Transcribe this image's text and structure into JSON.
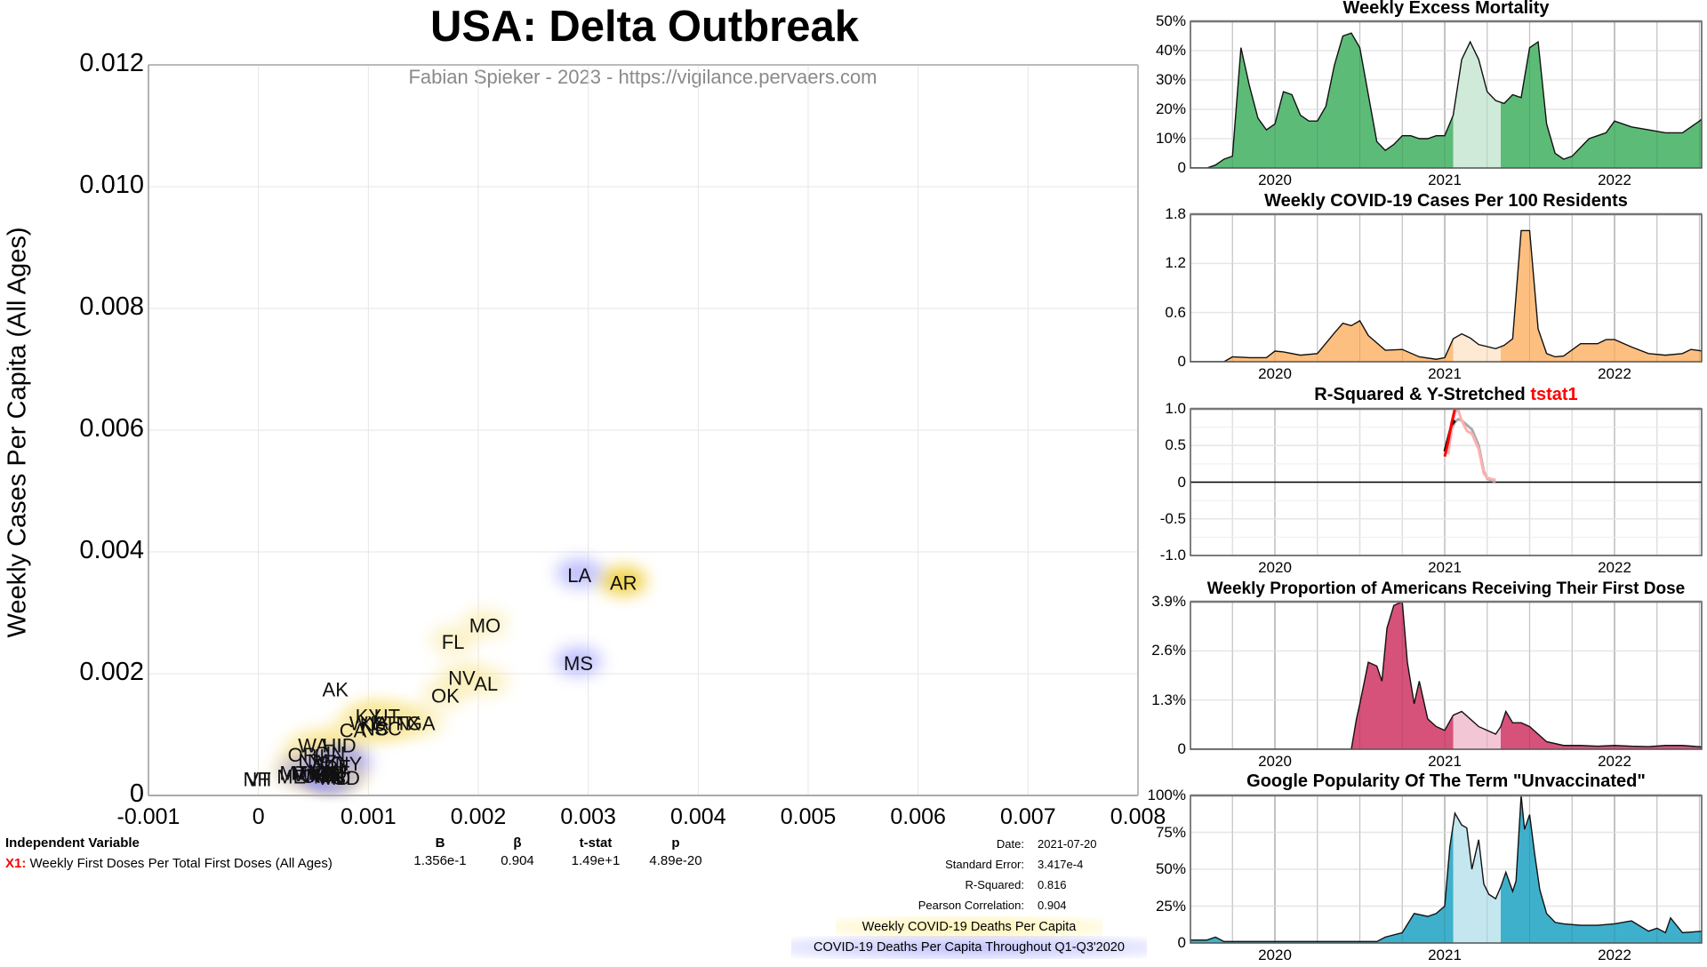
{
  "title": "USA: Delta Outbreak",
  "subtitle": "Fabian Spieker - 2023 - https://vigilance.pervaers.com",
  "chart_data": [
    {
      "type": "scatter",
      "title": "USA: Delta Outbreak",
      "xlabel": "Weekly First Doses Per Total First Doses (All Ages)",
      "ylabel": "Weekly Cases Per Capita (All Ages)",
      "xlim": [
        -0.001,
        0.008
      ],
      "ylim": [
        0,
        0.012
      ],
      "grid": true,
      "x_ticks": [
        "-0.001",
        "0",
        "0.001",
        "0.002",
        "0.003",
        "0.004",
        "0.005",
        "0.006",
        "0.007",
        "0.008"
      ],
      "x_tick_values": [
        -0.001,
        0,
        0.001,
        0.002,
        0.003,
        0.004,
        0.005,
        0.006,
        0.007,
        0.008
      ],
      "y_ticks": [
        "0",
        "0.002",
        "0.004",
        "0.006",
        "0.008",
        "0.010",
        "0.012"
      ],
      "y_tick_values": [
        0,
        0.002,
        0.004,
        0.006,
        0.008,
        0.01,
        0.012
      ],
      "points": [
        {
          "label": "AR",
          "x": 0.00332,
          "y": 0.00342,
          "glow": "yellow-strong"
        },
        {
          "label": "LA",
          "x": 0.00292,
          "y": 0.00355,
          "glow": "blue"
        },
        {
          "label": "MS",
          "x": 0.00291,
          "y": 0.0021,
          "glow": "blue"
        },
        {
          "label": "MO",
          "x": 0.00206,
          "y": 0.00272,
          "glow": "yellow"
        },
        {
          "label": "FL",
          "x": 0.00177,
          "y": 0.00245,
          "glow": "yellow"
        },
        {
          "label": "NV",
          "x": 0.00185,
          "y": 0.00186,
          "glow": "yellow"
        },
        {
          "label": "AL",
          "x": 0.00207,
          "y": 0.00177,
          "glow": "yellow"
        },
        {
          "label": "OK",
          "x": 0.0017,
          "y": 0.00157,
          "glow": "yellow"
        },
        {
          "label": "AK",
          "x": 0.0007,
          "y": 0.00167,
          "glow": "none"
        },
        {
          "label": "KY",
          "x": 0.001,
          "y": 0.00123,
          "glow": "yellow"
        },
        {
          "label": "UT",
          "x": 0.00117,
          "y": 0.00123,
          "glow": "yellow"
        },
        {
          "label": "WY",
          "x": 0.00097,
          "y": 0.00112,
          "glow": "yellow"
        },
        {
          "label": "KS",
          "x": 0.00104,
          "y": 0.0011,
          "glow": "yellow"
        },
        {
          "label": "IA",
          "x": 0.0011,
          "y": 0.00112,
          "glow": "yellow"
        },
        {
          "label": "TN",
          "x": 0.00126,
          "y": 0.00112,
          "glow": "yellow"
        },
        {
          "label": "TX",
          "x": 0.00136,
          "y": 0.00112,
          "glow": "yellow"
        },
        {
          "label": "GA",
          "x": 0.00148,
          "y": 0.00112,
          "glow": "yellow"
        },
        {
          "label": "CA",
          "x": 0.00086,
          "y": 0.001,
          "glow": "yellow"
        },
        {
          "label": "SC",
          "x": 0.00118,
          "y": 0.00103,
          "glow": "yellow"
        },
        {
          "label": "NC",
          "x": 0.00106,
          "y": 0.00103,
          "glow": "yellow"
        },
        {
          "label": "WA",
          "x": 0.0005,
          "y": 0.00075,
          "glow": "yellow"
        },
        {
          "label": "HI",
          "x": 0.00067,
          "y": 0.00075,
          "glow": "yellow"
        },
        {
          "label": "ID",
          "x": 0.0008,
          "y": 0.00075,
          "glow": "yellow"
        },
        {
          "label": "OR",
          "x": 0.0004,
          "y": 0.0006,
          "glow": "yellow"
        },
        {
          "label": "IN",
          "x": 0.0007,
          "y": 0.00062,
          "glow": "yellow"
        },
        {
          "label": "IL",
          "x": 0.00058,
          "y": 0.00058,
          "glow": "yellow"
        },
        {
          "label": "NM",
          "x": 0.0005,
          "y": 0.0005,
          "glow": "yellow"
        },
        {
          "label": "AZ",
          "x": 0.0006,
          "y": 0.00048,
          "glow": "yellow"
        },
        {
          "label": "CO",
          "x": 0.00066,
          "y": 0.00046,
          "glow": "yellow"
        },
        {
          "label": "NY",
          "x": 0.00082,
          "y": 0.00045,
          "glow": "blue"
        },
        {
          "label": "DE",
          "x": 0.00072,
          "y": 0.0004,
          "glow": "blue"
        },
        {
          "label": "MT",
          "x": 0.00032,
          "y": 0.0003,
          "glow": "yellow"
        },
        {
          "label": "WV",
          "x": 0.00046,
          "y": 0.00028,
          "glow": "yellow"
        },
        {
          "label": "OH",
          "x": 0.00052,
          "y": 0.00025,
          "glow": "yellow"
        },
        {
          "label": "ND",
          "x": 0.00056,
          "y": 0.00026,
          "glow": "yellow"
        },
        {
          "label": "NE",
          "x": 0.0006,
          "y": 0.00028,
          "glow": "yellow"
        },
        {
          "label": "MN",
          "x": 0.00064,
          "y": 0.00024,
          "glow": "yellow"
        },
        {
          "label": "WI",
          "x": 0.00068,
          "y": 0.00026,
          "glow": "yellow"
        },
        {
          "label": "MI",
          "x": 0.0004,
          "y": 0.0003,
          "glow": "blue"
        },
        {
          "label": "PA",
          "x": 0.00062,
          "y": 0.0003,
          "glow": "blue"
        },
        {
          "label": "NJ",
          "x": 0.0007,
          "y": 0.00032,
          "glow": "blue"
        },
        {
          "label": "MA",
          "x": 0.0006,
          "y": 0.00026,
          "glow": "blue"
        },
        {
          "label": "VA",
          "x": 0.00058,
          "y": 0.00032,
          "glow": "yellow"
        },
        {
          "label": "MD",
          "x": 0.0007,
          "y": 0.00022,
          "glow": "blue"
        },
        {
          "label": "CT",
          "x": 0.00064,
          "y": 0.0003,
          "glow": "blue"
        },
        {
          "label": "RI",
          "x": 0.00066,
          "y": 0.00024,
          "glow": "blue"
        },
        {
          "label": "SD",
          "x": 0.0008,
          "y": 0.00022,
          "glow": "yellow"
        },
        {
          "label": "NH",
          "x": -1e-05,
          "y": 0.0002,
          "glow": "none"
        },
        {
          "label": "VT",
          "x": 0.0,
          "y": 0.0002,
          "glow": "none"
        },
        {
          "label": "ME",
          "x": 0.0003,
          "y": 0.00024,
          "glow": "none"
        }
      ]
    },
    {
      "type": "area",
      "title": "Weekly Excess Mortality",
      "y_ticks": [
        "0",
        "10%",
        "20%",
        "30%",
        "40%",
        "50%"
      ],
      "ylim": [
        0,
        50
      ],
      "x_ticks": [
        "2020",
        "2021",
        "2022"
      ],
      "highlight_range": [
        2021.05,
        2021.33
      ],
      "color": "#5dbb78",
      "highlight_color": "#cfead8",
      "x": [
        2019.5,
        2019.6,
        2019.65,
        2019.7,
        2019.75,
        2019.8,
        2019.85,
        2019.9,
        2019.95,
        2020.0,
        2020.05,
        2020.1,
        2020.15,
        2020.2,
        2020.25,
        2020.3,
        2020.35,
        2020.4,
        2020.45,
        2020.5,
        2020.55,
        2020.6,
        2020.65,
        2020.7,
        2020.75,
        2020.8,
        2020.85,
        2020.9,
        2020.95,
        2021.0,
        2021.05,
        2021.1,
        2021.15,
        2021.2,
        2021.25,
        2021.3,
        2021.35,
        2021.4,
        2021.45,
        2021.5,
        2021.55,
        2021.6,
        2021.65,
        2021.7,
        2021.75,
        2021.8,
        2021.85,
        2021.9,
        2021.95,
        2022.0,
        2022.1,
        2022.2,
        2022.3,
        2022.4,
        2022.5,
        2022.52
      ],
      "values": [
        0,
        0,
        1,
        3,
        4,
        41,
        28,
        17,
        13,
        15,
        26,
        25,
        18,
        16,
        16,
        21,
        35,
        45,
        46,
        41,
        25,
        9,
        6,
        8,
        11,
        11,
        10,
        10,
        11,
        11,
        18,
        37,
        43,
        37,
        26,
        23,
        22,
        25,
        24,
        41,
        43,
        15,
        5,
        3,
        4,
        7,
        10,
        11,
        12,
        16,
        14,
        13,
        12,
        12,
        16,
        17
      ]
    },
    {
      "type": "area",
      "title": "Weekly COVID-19 Cases Per 100 Residents",
      "y_ticks": [
        "0",
        "0.6",
        "1.2",
        "1.8"
      ],
      "ylim": [
        0,
        1.8
      ],
      "x_ticks": [
        "2020",
        "2021",
        "2022"
      ],
      "highlight_range": [
        2021.05,
        2021.33
      ],
      "color": "#fdbf80",
      "highlight_color": "#fde9d4",
      "x": [
        2019.5,
        2019.7,
        2019.75,
        2019.85,
        2019.95,
        2020.0,
        2020.05,
        2020.15,
        2020.25,
        2020.35,
        2020.4,
        2020.45,
        2020.5,
        2020.55,
        2020.65,
        2020.75,
        2020.85,
        2020.95,
        2021.0,
        2021.05,
        2021.1,
        2021.15,
        2021.2,
        2021.3,
        2021.35,
        2021.4,
        2021.45,
        2021.5,
        2021.55,
        2021.6,
        2021.65,
        2021.7,
        2021.8,
        2021.9,
        2021.95,
        2022.0,
        2022.1,
        2022.2,
        2022.3,
        2022.4,
        2022.45,
        2022.52
      ],
      "values": [
        0,
        0,
        0.06,
        0.05,
        0.05,
        0.13,
        0.12,
        0.08,
        0.1,
        0.35,
        0.47,
        0.44,
        0.5,
        0.32,
        0.14,
        0.15,
        0.06,
        0.03,
        0.05,
        0.28,
        0.34,
        0.29,
        0.21,
        0.16,
        0.2,
        0.28,
        1.6,
        1.6,
        0.4,
        0.1,
        0.06,
        0.07,
        0.22,
        0.22,
        0.27,
        0.27,
        0.18,
        0.1,
        0.08,
        0.1,
        0.15,
        0.13
      ]
    },
    {
      "type": "line",
      "title": "R-Squared &  Y-Stretched tstat1",
      "title_highlight": "tstat1",
      "y_ticks": [
        "-1.0",
        "-0.5",
        "0",
        "0.5",
        "1.0"
      ],
      "ylim": [
        -1.0,
        1.0
      ],
      "x_ticks": [
        "2020",
        "2021",
        "2022"
      ],
      "series": [
        {
          "name": "R-Squared (history)",
          "color": "#aaaaaa",
          "x": [
            2021.02,
            2021.04,
            2021.06,
            2021.08,
            2021.1,
            2021.13,
            2021.16,
            2021.2,
            2021.23,
            2021.25,
            2021.28,
            2021.3
          ],
          "values": [
            0.45,
            0.72,
            0.82,
            0.86,
            0.84,
            0.78,
            0.72,
            0.5,
            0.15,
            0.05,
            0.02,
            0.01
          ]
        },
        {
          "name": "tstat1 (history)",
          "color": "#ffb0b0",
          "x": [
            2021.02,
            2021.04,
            2021.06,
            2021.08,
            2021.1,
            2021.13,
            2021.16,
            2021.2,
            2021.23,
            2021.25,
            2021.28,
            2021.3
          ],
          "values": [
            0.38,
            0.7,
            0.95,
            0.98,
            0.84,
            0.7,
            0.66,
            0.45,
            0.12,
            0.06,
            0.04,
            0.03
          ]
        },
        {
          "name": "R-Squared",
          "color": "#000000",
          "x": [
            2021.0,
            2021.02,
            2021.04,
            2021.06
          ],
          "values": [
            0.42,
            0.6,
            0.78,
            0.84
          ]
        },
        {
          "name": "tstat1",
          "color": "#ff0000",
          "x": [
            2021.0,
            2021.02,
            2021.04,
            2021.06
          ],
          "values": [
            0.35,
            0.55,
            0.8,
            1.0
          ]
        }
      ]
    },
    {
      "type": "area",
      "title": "Weekly Proportion of Americans Receiving Their First Dose",
      "y_ticks": [
        "0",
        "1.3%",
        "2.6%",
        "3.9%"
      ],
      "ylim": [
        0,
        3.9
      ],
      "x_ticks": [
        "2020",
        "2021",
        "2022"
      ],
      "highlight_range": [
        2021.05,
        2021.33
      ],
      "color": "#d6527a",
      "highlight_color": "#f2c6d4",
      "x": [
        2019.5,
        2020.45,
        2020.48,
        2020.5,
        2020.55,
        2020.6,
        2020.63,
        2020.66,
        2020.7,
        2020.75,
        2020.78,
        2020.82,
        2020.85,
        2020.9,
        2020.95,
        2021.0,
        2021.05,
        2021.1,
        2021.15,
        2021.2,
        2021.25,
        2021.3,
        2021.33,
        2021.36,
        2021.4,
        2021.45,
        2021.5,
        2021.55,
        2021.6,
        2021.7,
        2021.8,
        2021.9,
        2022.0,
        2022.1,
        2022.2,
        2022.3,
        2022.4,
        2022.52
      ],
      "values": [
        0,
        0,
        0.8,
        1.2,
        2.3,
        2.2,
        1.8,
        3.2,
        3.8,
        3.9,
        2.3,
        1.2,
        1.8,
        0.8,
        0.6,
        0.5,
        0.9,
        1.0,
        0.8,
        0.6,
        0.5,
        0.4,
        0.6,
        1.0,
        0.7,
        0.7,
        0.6,
        0.4,
        0.2,
        0.1,
        0.1,
        0.08,
        0.1,
        0.08,
        0.07,
        0.1,
        0.1,
        0.06
      ]
    },
    {
      "type": "area",
      "title": "Google Popularity Of The Term \"Unvaccinated\"",
      "y_ticks": [
        "0",
        "25%",
        "50%",
        "75%",
        "100%"
      ],
      "ylim": [
        0,
        100
      ],
      "x_ticks": [
        "2020",
        "2021",
        "2022"
      ],
      "highlight_range": [
        2021.05,
        2021.33
      ],
      "color": "#3fb0cb",
      "highlight_color": "#c4e6ef",
      "x": [
        2019.5,
        2019.6,
        2019.65,
        2019.7,
        2019.75,
        2020.0,
        2020.5,
        2020.6,
        2020.65,
        2020.75,
        2020.82,
        2020.9,
        2020.95,
        2021.0,
        2021.03,
        2021.06,
        2021.1,
        2021.13,
        2021.16,
        2021.2,
        2021.23,
        2021.26,
        2021.3,
        2021.33,
        2021.36,
        2021.4,
        2021.42,
        2021.45,
        2021.47,
        2021.5,
        2021.53,
        2021.56,
        2021.6,
        2021.65,
        2021.7,
        2021.8,
        2021.9,
        2022.0,
        2022.1,
        2022.2,
        2022.25,
        2022.3,
        2022.33,
        2022.4,
        2022.52
      ],
      "values": [
        2,
        2,
        4,
        1,
        1,
        1,
        1,
        1,
        4,
        7,
        20,
        18,
        20,
        25,
        65,
        88,
        80,
        78,
        50,
        70,
        40,
        33,
        30,
        38,
        48,
        35,
        42,
        100,
        77,
        87,
        60,
        36,
        20,
        14,
        13,
        12,
        12,
        13,
        15,
        8,
        10,
        7,
        17,
        7,
        8
      ]
    }
  ],
  "stats": {
    "independent_variable_header": "Independent Variable",
    "x1_label": "X1:",
    "x1_desc": "Weekly First Doses Per Total First Doses (All Ages)",
    "columns": [
      "B",
      "β",
      "t-stat",
      "p"
    ],
    "values": [
      "1.356e-1",
      "0.904",
      "1.49e+1",
      "4.89e-20"
    ],
    "date_label": "Date:",
    "date": "2021-07-20",
    "se_label": "Standard Error:",
    "se": "3.417e-4",
    "r2_label": "R-Squared:",
    "r2": "0.816",
    "pearson_label": "Pearson Correlation:",
    "pearson": "0.904"
  },
  "legend": {
    "yellow": "Weekly COVID-19 Deaths Per Capita",
    "blue": "COVID-19 Deaths Per Capita Throughout Q1-Q3'2020"
  },
  "panel_titles": {
    "p1": "Weekly Excess Mortality",
    "p2": "Weekly COVID-19 Cases Per 100 Residents",
    "p3_prefix": "R-Squared &  Y-Stretched ",
    "p3_red": "tstat1",
    "p4": "Weekly Proportion of Americans Receiving Their First Dose",
    "p5": "Google Popularity Of The Term \"Unvaccinated\""
  },
  "colors": {
    "accent_red": "#ff0000",
    "glow_yellow": "#f5d84a",
    "glow_blue": "#7b7bff"
  }
}
